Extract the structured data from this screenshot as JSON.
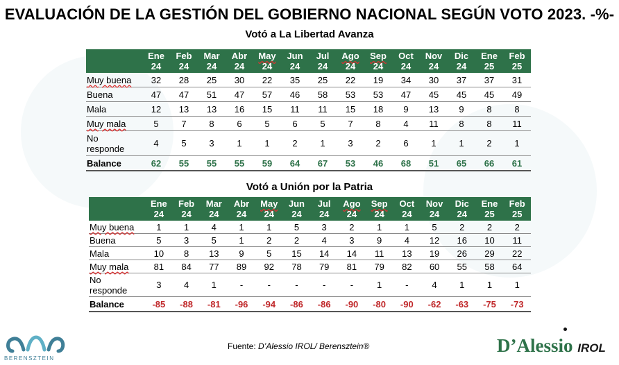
{
  "title": "EVALUACIÓN DE LA GESTIÓN DEL GOBIERNO NACIONAL SEGÚN VOTO 2023. -%-",
  "columns": [
    {
      "m": "Ene",
      "y": "24"
    },
    {
      "m": "Feb",
      "y": "24"
    },
    {
      "m": "Mar",
      "y": "24"
    },
    {
      "m": "Abr",
      "y": "24"
    },
    {
      "m": "May",
      "y": "24"
    },
    {
      "m": "Jun",
      "y": "24"
    },
    {
      "m": "Jul",
      "y": "24"
    },
    {
      "m": "Ago",
      "y": "24"
    },
    {
      "m": "Sep",
      "y": "24"
    },
    {
      "m": "Oct",
      "y": "24"
    },
    {
      "m": "Nov",
      "y": "24"
    },
    {
      "m": "Dic",
      "y": "24"
    },
    {
      "m": "Ene",
      "y": "25"
    },
    {
      "m": "Feb",
      "y": "25"
    }
  ],
  "table1": {
    "title": "Votó a La Libertad Avanza",
    "rows": [
      {
        "label": "Muy buena",
        "values": [
          "32",
          "28",
          "25",
          "30",
          "22",
          "35",
          "25",
          "22",
          "19",
          "34",
          "30",
          "37",
          "37",
          "31"
        ]
      },
      {
        "label": "Buena",
        "values": [
          "47",
          "47",
          "51",
          "47",
          "57",
          "46",
          "58",
          "53",
          "53",
          "47",
          "45",
          "45",
          "45",
          "49"
        ]
      },
      {
        "label": "Mala",
        "values": [
          "12",
          "13",
          "13",
          "16",
          "15",
          "11",
          "11",
          "15",
          "18",
          "9",
          "13",
          "9",
          "8",
          "8"
        ]
      },
      {
        "label": "Muy mala",
        "values": [
          "5",
          "7",
          "8",
          "6",
          "5",
          "6",
          "5",
          "7",
          "8",
          "4",
          "11",
          "8",
          "8",
          "11"
        ]
      },
      {
        "label_line1": "No",
        "label_line2": "responde",
        "values": [
          "4",
          "5",
          "3",
          "1",
          "1",
          "2",
          "1",
          "3",
          "2",
          "6",
          "1",
          "1",
          "2",
          "1"
        ]
      }
    ],
    "balance": {
      "label": "Balance",
      "values": [
        "62",
        "55",
        "55",
        "55",
        "59",
        "64",
        "67",
        "53",
        "46",
        "68",
        "51",
        "65",
        "66",
        "61"
      ]
    }
  },
  "table2": {
    "title": "Votó a Unión por la Patria",
    "rows": [
      {
        "label": "Muy buena",
        "values": [
          "1",
          "1",
          "4",
          "1",
          "1",
          "5",
          "3",
          "2",
          "1",
          "1",
          "5",
          "2",
          "2",
          "2"
        ]
      },
      {
        "label": "Buena",
        "values": [
          "5",
          "3",
          "5",
          "1",
          "2",
          "2",
          "4",
          "3",
          "9",
          "4",
          "12",
          "16",
          "10",
          "11"
        ]
      },
      {
        "label": "Mala",
        "values": [
          "10",
          "8",
          "13",
          "9",
          "5",
          "15",
          "14",
          "14",
          "11",
          "13",
          "19",
          "26",
          "29",
          "22"
        ]
      },
      {
        "label": "Muy mala",
        "values": [
          "81",
          "84",
          "77",
          "89",
          "92",
          "78",
          "79",
          "81",
          "79",
          "82",
          "60",
          "55",
          "58",
          "64"
        ]
      },
      {
        "label_line1": "No",
        "label_line2": "responde",
        "values": [
          "3",
          "4",
          "1",
          "-",
          "-",
          "-",
          "-",
          "-",
          "1",
          "-",
          "4",
          "1",
          "1",
          "1"
        ]
      }
    ],
    "balance": {
      "label": "Balance",
      "values": [
        "-85",
        "-88",
        "-81",
        "-96",
        "-94",
        "-86",
        "-86",
        "-90",
        "-80",
        "-90",
        "-62",
        "-63",
        "-75",
        "-73"
      ]
    }
  },
  "footer": {
    "source_prefix": "Fuente: ",
    "source_italic": "D’Alessio IROL/ Berensztein®",
    "logo_left_text": "BERENSZTEIN",
    "logo_right_main": "D’Alessio",
    "logo_right_sub": "IROL"
  },
  "colors": {
    "header_green": "#2e7249",
    "positive_green": "#2e7249",
    "negative_red": "#c0282a"
  }
}
